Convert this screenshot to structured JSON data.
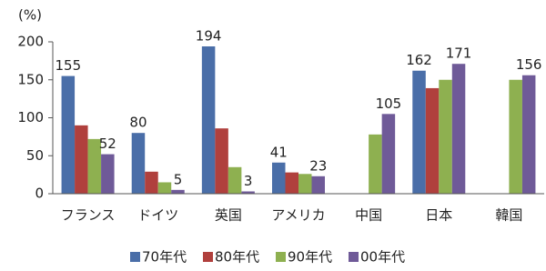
{
  "chart_data": {
    "type": "bar",
    "y_label": "(%)",
    "categories": [
      "フランス",
      "ドイツ",
      "英国",
      "アメリカ",
      "中国",
      "日本",
      "韓国"
    ],
    "series": [
      {
        "name": "70年代",
        "color": "#4a6ea8",
        "values": [
          155,
          80,
          194,
          41,
          null,
          162,
          null
        ],
        "value_labels": [
          155,
          80,
          194,
          41,
          null,
          162,
          null
        ]
      },
      {
        "name": "80年代",
        "color": "#b0403d",
        "values": [
          90,
          29,
          86,
          28,
          null,
          139,
          null
        ],
        "value_labels": [
          null,
          null,
          null,
          null,
          null,
          null,
          null
        ]
      },
      {
        "name": "90年代",
        "color": "#8eb050",
        "values": [
          72,
          15,
          35,
          26,
          78,
          150,
          150
        ],
        "value_labels": [
          null,
          null,
          null,
          null,
          null,
          null,
          null
        ]
      },
      {
        "name": "00年代",
        "color": "#6f5a98",
        "values": [
          52,
          5,
          3,
          23,
          105,
          171,
          156
        ],
        "value_labels": [
          52,
          5,
          3,
          23,
          105,
          171,
          156
        ]
      }
    ],
    "ylim": [
      0,
      200
    ],
    "yticks": [
      0,
      50,
      100,
      150,
      200
    ],
    "grid": false,
    "legend": "bottom"
  }
}
